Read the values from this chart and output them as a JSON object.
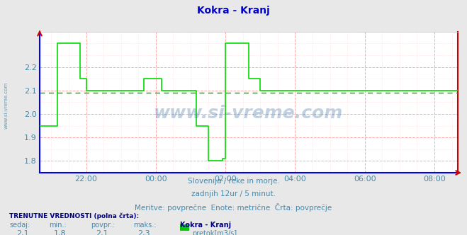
{
  "title": "Kokra - Kranj",
  "title_color": "#0000cc",
  "bg_color": "#e8e8e8",
  "plot_bg_color": "#ffffff",
  "grid_color": "#ffaaaa",
  "line_color": "#00dd00",
  "avg_line_color": "#00aa00",
  "ylim": [
    1.75,
    2.35
  ],
  "yticks": [
    1.8,
    1.9,
    2.0,
    2.1,
    2.2
  ],
  "xtick_labels": [
    "22:00",
    "00:00",
    "02:00",
    "04:00",
    "06:00",
    "08:00"
  ],
  "tick_positions": [
    16,
    40,
    64,
    88,
    112,
    136
  ],
  "avg_value": 2.09,
  "watermark": "www.si-vreme.com",
  "subtitle1": "Slovenija / reke in morje.",
  "subtitle2": "zadnjih 12ur / 5 minut.",
  "subtitle3": "Meritve: povprečne  Enote: metrične  Črta: povprečje",
  "footer_title": "TRENUTNE VREDNOSTI (polna črta):",
  "footer_labels": [
    "sedaj:",
    "min.:",
    "povpr.:",
    "maks.:"
  ],
  "footer_values": [
    "2,1",
    "1,8",
    "2,1",
    "2,3"
  ],
  "footer_series": "Kokra - Kranj",
  "footer_unit": "pretok[m3/s]",
  "legend_color": "#00cc00",
  "text_color": "#4488aa",
  "left_label": "www.si-vreme.com",
  "spine_bottom_color": "#0000ff",
  "spine_right_color": "#cc0000",
  "arrow_color": "#cc0000",
  "n": 145,
  "xlim": [
    0,
    144
  ]
}
